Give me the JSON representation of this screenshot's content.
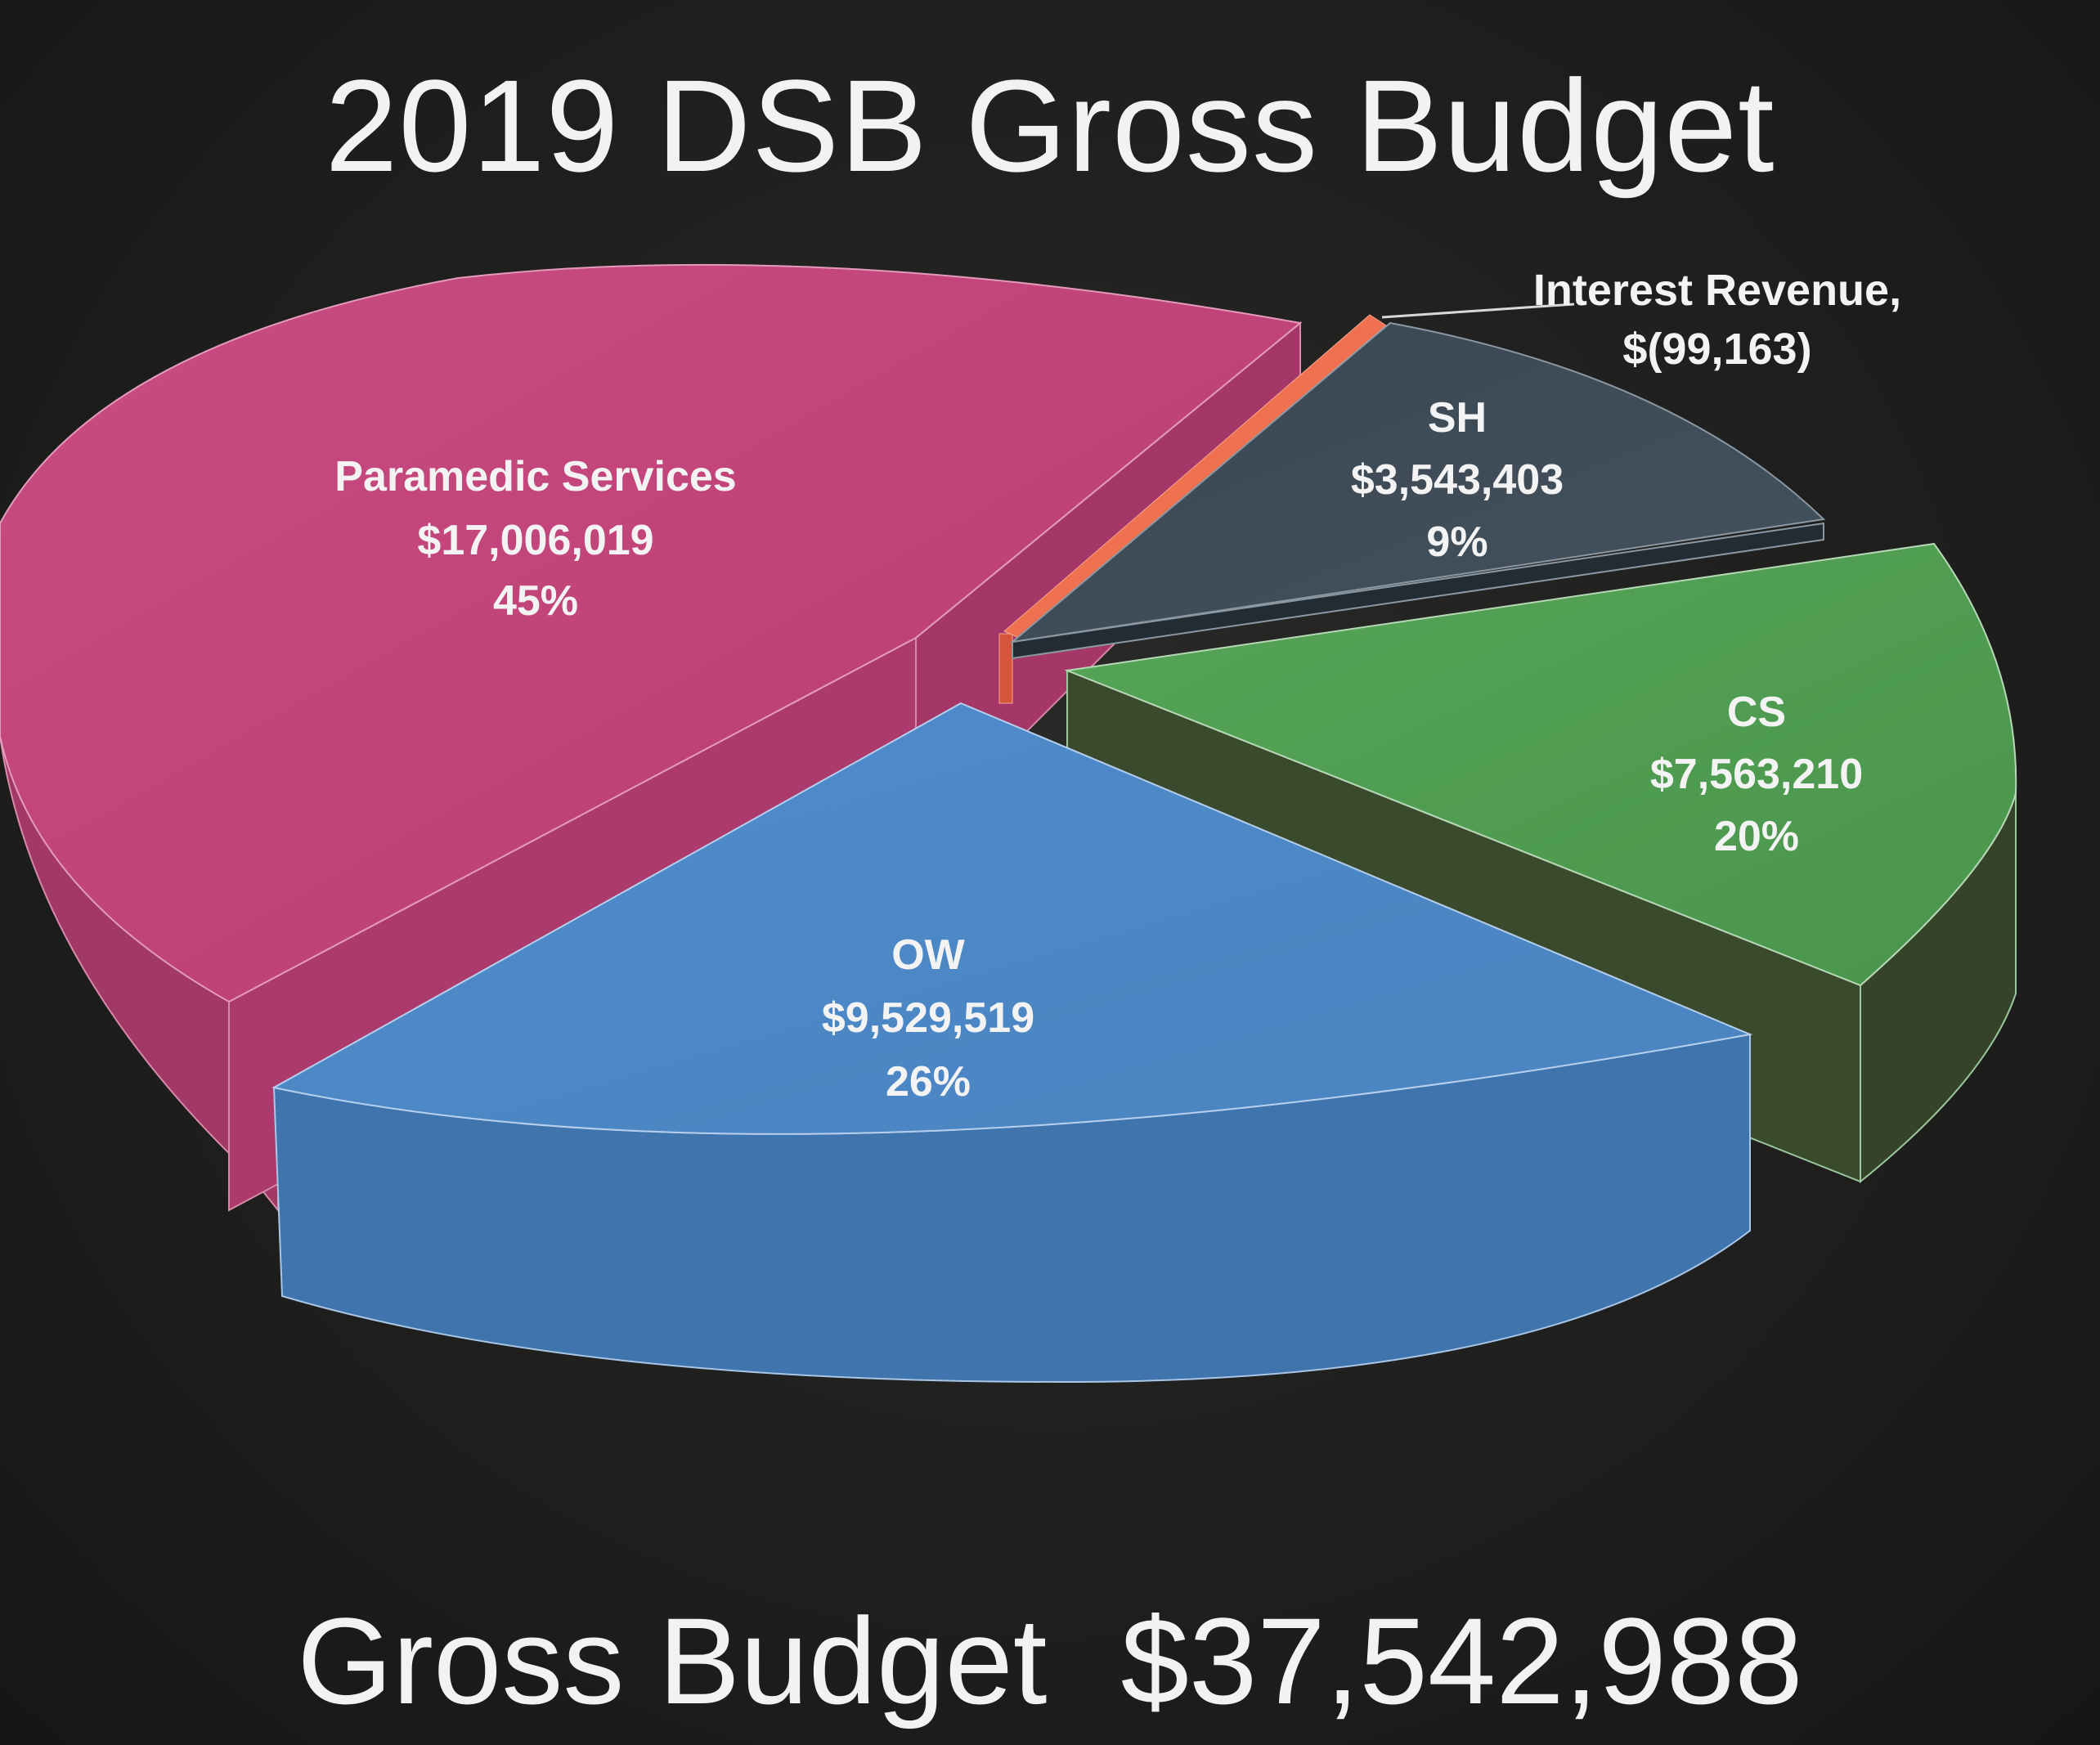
{
  "chart_data": {
    "type": "pie",
    "title": "2019 DSB Gross Budget",
    "slices": [
      {
        "label": "Paramedic Services",
        "value_text": "$17,006,019",
        "percent_text": "45%",
        "value": 17006019,
        "percent": 45,
        "color": "#c7457d"
      },
      {
        "label": "Interest Revenue,",
        "value_text": "$(99,163)",
        "percent_text": "",
        "value": -99163,
        "percent": 0,
        "color": "#f06a4a"
      },
      {
        "label": "SH",
        "value_text": "$3,543,403",
        "percent_text": "9%",
        "value": 3543403,
        "percent": 9,
        "color": "#3b4a57"
      },
      {
        "label": "CS",
        "value_text": "$7,563,210",
        "percent_text": "20%",
        "value": 7563210,
        "percent": 20,
        "color": "#4f9d52"
      },
      {
        "label": "OW",
        "value_text": "$9,529,519",
        "percent_text": "26%",
        "value": 9529519,
        "percent": 26,
        "color": "#4d87c6"
      }
    ]
  },
  "footer": {
    "label": "Gross Budget",
    "total": "$37,542,988"
  }
}
